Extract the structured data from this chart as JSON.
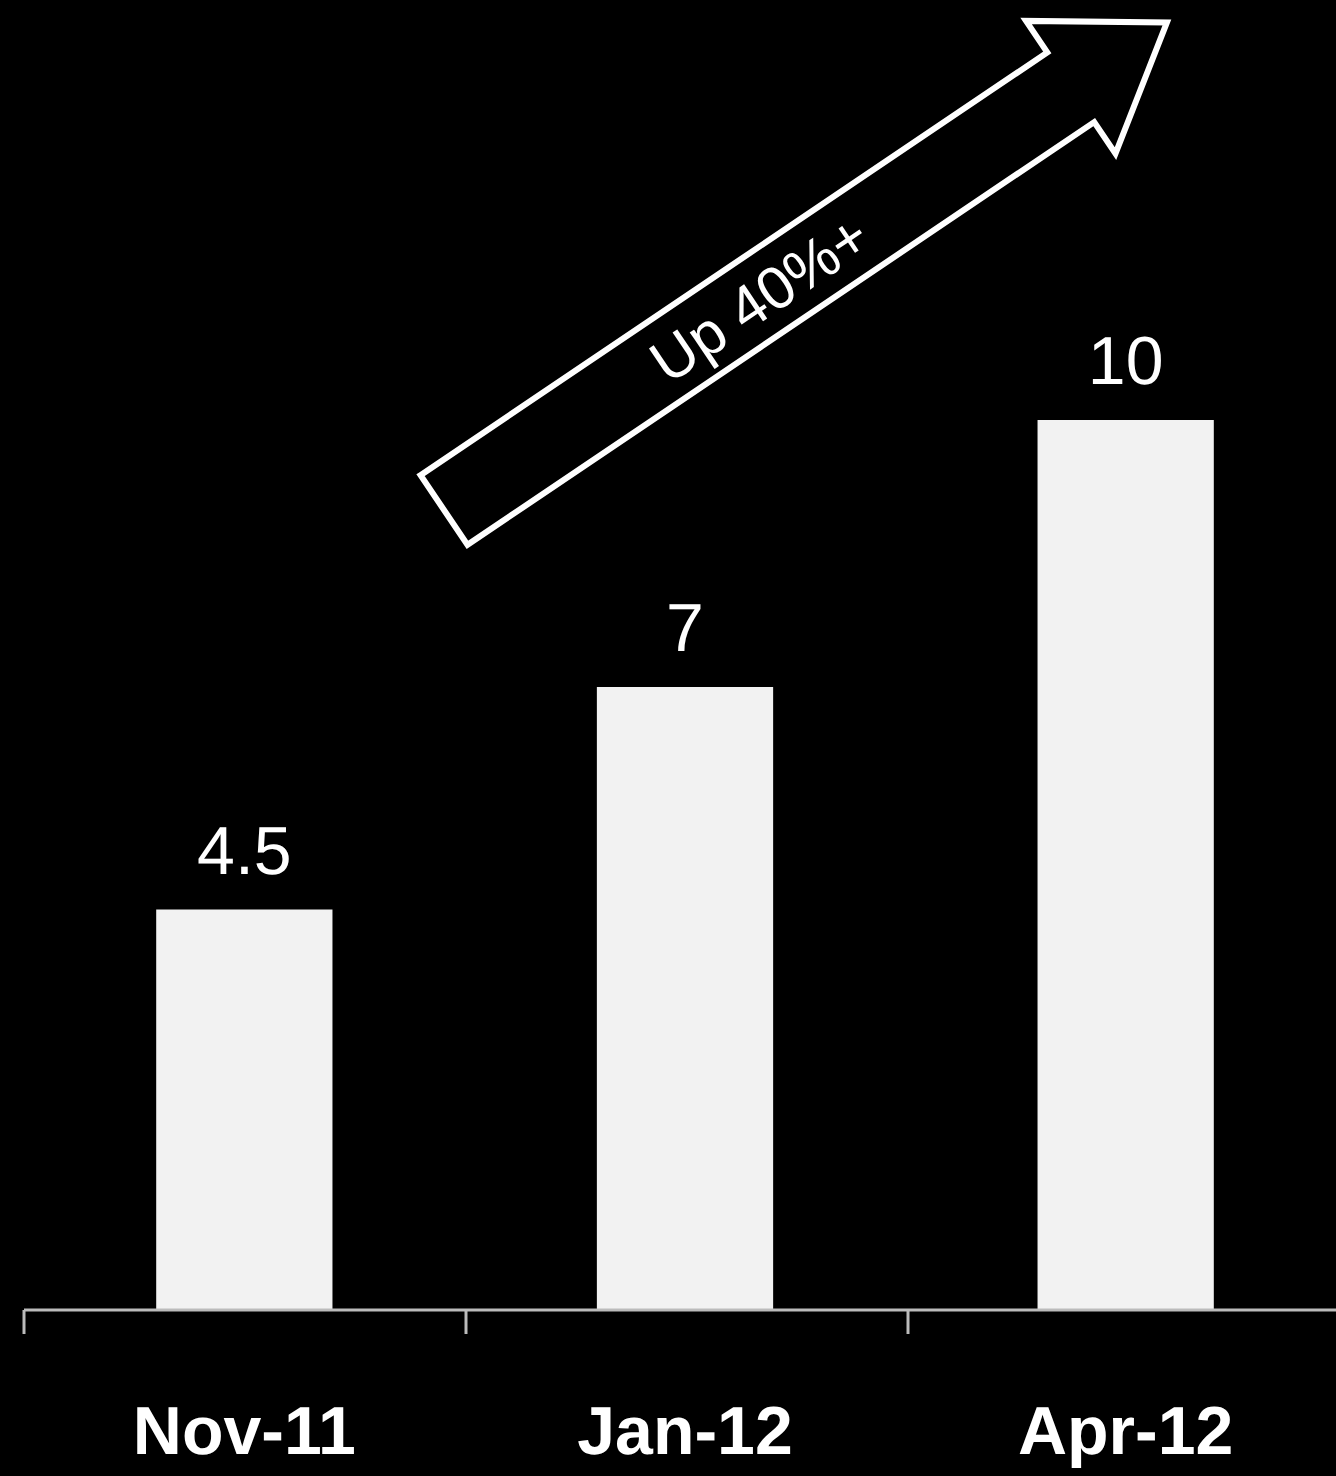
{
  "chart_data": {
    "type": "bar",
    "categories": [
      "Nov-11",
      "Jan-12",
      "Apr-12"
    ],
    "values": [
      4.5,
      7,
      10
    ],
    "color": "#f2f2f2",
    "data_labels": true,
    "annotations": [
      "Up 40%+"
    ]
  }
}
